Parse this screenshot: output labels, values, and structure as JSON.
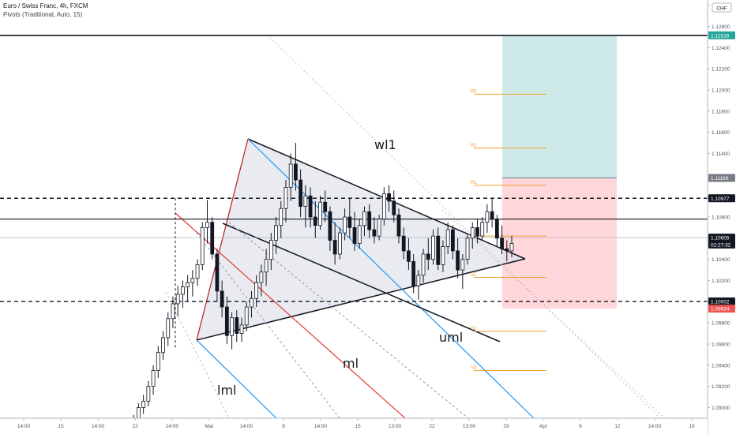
{
  "header": {
    "symbol_line": "Euro / Swiss Franc, 4h, FXCM",
    "indicator_line": "Pivots (Traditional, Auto, 15)"
  },
  "currency_badge": "CHF",
  "colors": {
    "candle_up": "#131722",
    "candle_down": "#131722",
    "pivot": "#f0a030",
    "ml": "#e53935",
    "parallel": "#2196f3",
    "target_zone": "#b2dfdb",
    "stop_zone": "#ffcdd2",
    "triangle_fill": "#e0e3eb",
    "price_green": "#26a69a",
    "price_red": "#ef5350",
    "axis_text": "#50535e"
  },
  "chart_data": {
    "type": "candlestick",
    "title": "Euro / Swiss Franc, 4h, FXCM",
    "y_axis": {
      "ylim": [
        1.0875,
        1.1285
      ],
      "tick_labels": [
        "1.12800",
        "1.12600",
        "1.12400",
        "1.12200",
        "1.12000",
        "1.11800",
        "1.11600",
        "1.11400",
        "1.11000",
        "1.10800",
        "1.10400",
        "1.10200",
        "1.09800",
        "1.09600",
        "1.09400",
        "1.09200",
        "1.09000",
        "1.08800"
      ]
    },
    "x_axis": {
      "tick_labels": [
        "14:00",
        "15",
        "14:00",
        "22",
        "14:00",
        "Mar",
        "14:00",
        "8",
        "14:00",
        "15",
        "13:00",
        "22",
        "13:00",
        "29",
        "Apr",
        "6",
        "12",
        "14:00",
        "19"
      ]
    },
    "price_labels": [
      {
        "text": "1.12516",
        "value": 1.12516,
        "style": "green"
      },
      {
        "text": "1.11169",
        "value": 1.11169,
        "style": "gray"
      },
      {
        "text": "1.10977",
        "value": 1.10977,
        "style": "black"
      },
      {
        "text": "1.10605",
        "value": 1.10605,
        "style": "current"
      },
      {
        "text": "02:27:32",
        "value": 1.1054,
        "style": "countdown"
      },
      {
        "text": "1.10002",
        "value": 1.10002,
        "style": "black"
      },
      {
        "text": "1.09934",
        "value": 1.09934,
        "style": "red"
      }
    ],
    "horizontal_lines": [
      {
        "value": 1.12516,
        "style": "solid"
      },
      {
        "value": 1.1078,
        "style": "solid"
      },
      {
        "value": 1.10977,
        "style": "dashed"
      },
      {
        "value": 1.10002,
        "style": "dashed"
      },
      {
        "value": 1.10605,
        "style": "thin"
      }
    ],
    "pivots": [
      {
        "label": "R3",
        "value": 1.1196
      },
      {
        "label": "R2",
        "value": 1.1145
      },
      {
        "label": "R1",
        "value": 1.111
      },
      {
        "label": "P",
        "value": 1.1062
      },
      {
        "label": "S1",
        "value": 1.1023
      },
      {
        "label": "S2",
        "value": 1.0972
      },
      {
        "label": "S3",
        "value": 1.0935
      }
    ],
    "zones": {
      "target": [
        1.11169,
        1.12516
      ],
      "stop": [
        1.09934,
        1.11169
      ]
    },
    "annotations": [
      "wl1",
      "uml",
      "ml",
      "lml"
    ],
    "candles": [
      [
        1.088,
        1.0887,
        1.0876,
        1.0885
      ],
      [
        1.0885,
        1.0893,
        1.0881,
        1.089
      ],
      [
        1.089,
        1.0904,
        1.0886,
        1.09
      ],
      [
        1.09,
        1.0912,
        1.0894,
        1.0906
      ],
      [
        1.0906,
        1.0925,
        1.0901,
        1.092
      ],
      [
        1.092,
        1.094,
        1.0912,
        1.0935
      ],
      [
        1.0935,
        1.0958,
        1.0928,
        1.0952
      ],
      [
        1.0952,
        1.0972,
        1.0945,
        1.0966
      ],
      [
        1.0966,
        1.099,
        1.0958,
        1.0984
      ],
      [
        1.0984,
        1.1005,
        1.0975,
        1.0998
      ],
      [
        1.0998,
        1.1015,
        1.0986,
        1.1007
      ],
      [
        1.1007,
        1.102,
        1.0994,
        1.1014
      ],
      [
        1.1014,
        1.1025,
        1.1,
        1.1018
      ],
      [
        1.1018,
        1.103,
        1.1005,
        1.1022
      ],
      [
        1.1022,
        1.104,
        1.1015,
        1.1035
      ],
      [
        1.1035,
        1.1075,
        1.103,
        1.107
      ],
      [
        1.107,
        1.1096,
        1.1055,
        1.1075
      ],
      [
        1.1075,
        1.108,
        1.104,
        1.1045
      ],
      [
        1.1045,
        1.105,
        1.1,
        1.101
      ],
      [
        1.101,
        1.102,
        1.0985,
        1.0995
      ],
      [
        1.0995,
        1.1005,
        1.096,
        1.0968
      ],
      [
        1.0968,
        1.099,
        1.0955,
        1.0985
      ],
      [
        1.0985,
        1.0992,
        1.0962,
        1.097
      ],
      [
        1.097,
        1.0985,
        1.0962,
        1.0978
      ],
      [
        1.0978,
        1.1,
        1.0972,
        1.0995
      ],
      [
        1.0995,
        1.101,
        1.0985,
        1.1003
      ],
      [
        1.1003,
        1.1025,
        1.0995,
        1.1018
      ],
      [
        1.1018,
        1.1035,
        1.1005,
        1.1028
      ],
      [
        1.1028,
        1.105,
        1.1015,
        1.104
      ],
      [
        1.104,
        1.1065,
        1.103,
        1.1058
      ],
      [
        1.1058,
        1.108,
        1.1045,
        1.1072
      ],
      [
        1.1072,
        1.1095,
        1.106,
        1.1088
      ],
      [
        1.1088,
        1.1115,
        1.1075,
        1.1108
      ],
      [
        1.1108,
        1.114,
        1.1095,
        1.113
      ],
      [
        1.113,
        1.115,
        1.1105,
        1.1115
      ],
      [
        1.1115,
        1.1125,
        1.108,
        1.109
      ],
      [
        1.109,
        1.111,
        1.107,
        1.11
      ],
      [
        1.11,
        1.1108,
        1.107,
        1.108
      ],
      [
        1.108,
        1.1095,
        1.106,
        1.1072
      ],
      [
        1.1072,
        1.11,
        1.1068,
        1.1094
      ],
      [
        1.1094,
        1.1105,
        1.1075,
        1.1085
      ],
      [
        1.1085,
        1.109,
        1.1048,
        1.1058
      ],
      [
        1.1058,
        1.1075,
        1.1035,
        1.1045
      ],
      [
        1.1045,
        1.107,
        1.104,
        1.1065
      ],
      [
        1.1065,
        1.1088,
        1.1058,
        1.108
      ],
      [
        1.108,
        1.1098,
        1.106,
        1.107
      ],
      [
        1.107,
        1.1085,
        1.1048,
        1.1055
      ],
      [
        1.1055,
        1.1078,
        1.105,
        1.1072
      ],
      [
        1.1072,
        1.109,
        1.1062,
        1.1085
      ],
      [
        1.1085,
        1.1092,
        1.106,
        1.1068
      ],
      [
        1.1068,
        1.108,
        1.1055,
        1.1062
      ],
      [
        1.1062,
        1.1082,
        1.1058,
        1.1078
      ],
      [
        1.1078,
        1.1108,
        1.1072,
        1.1102
      ],
      [
        1.1102,
        1.111,
        1.1085,
        1.1095
      ],
      [
        1.1095,
        1.1105,
        1.1075,
        1.1082
      ],
      [
        1.1082,
        1.1088,
        1.1055,
        1.1062
      ],
      [
        1.1062,
        1.107,
        1.104,
        1.1048
      ],
      [
        1.1048,
        1.106,
        1.103,
        1.1038
      ],
      [
        1.1038,
        1.1045,
        1.1008,
        1.1015
      ],
      [
        1.1015,
        1.103,
        1.1002,
        1.1025
      ],
      [
        1.1025,
        1.105,
        1.1018,
        1.1045
      ],
      [
        1.1045,
        1.106,
        1.103,
        1.104
      ],
      [
        1.104,
        1.1068,
        1.1035,
        1.1062
      ],
      [
        1.1062,
        1.107,
        1.103,
        1.1035
      ],
      [
        1.1035,
        1.1058,
        1.1028,
        1.1052
      ],
      [
        1.1052,
        1.1075,
        1.1045,
        1.1068
      ],
      [
        1.1068,
        1.1072,
        1.104,
        1.1048
      ],
      [
        1.1048,
        1.106,
        1.1022,
        1.103
      ],
      [
        1.103,
        1.1045,
        1.1012,
        1.104
      ],
      [
        1.104,
        1.1065,
        1.1035,
        1.106
      ],
      [
        1.106,
        1.1075,
        1.105,
        1.107
      ],
      [
        1.107,
        1.1078,
        1.1055,
        1.1062
      ],
      [
        1.1062,
        1.108,
        1.1058,
        1.1075
      ],
      [
        1.1075,
        1.1092,
        1.1065,
        1.1085
      ],
      [
        1.1085,
        1.1098,
        1.107,
        1.1078
      ],
      [
        1.1078,
        1.1082,
        1.1052,
        1.106
      ],
      [
        1.106,
        1.1072,
        1.1045,
        1.105
      ],
      [
        1.105,
        1.1058,
        1.1038,
        1.1048
      ],
      [
        1.1048,
        1.1062,
        1.1042,
        1.1055
      ]
    ]
  }
}
